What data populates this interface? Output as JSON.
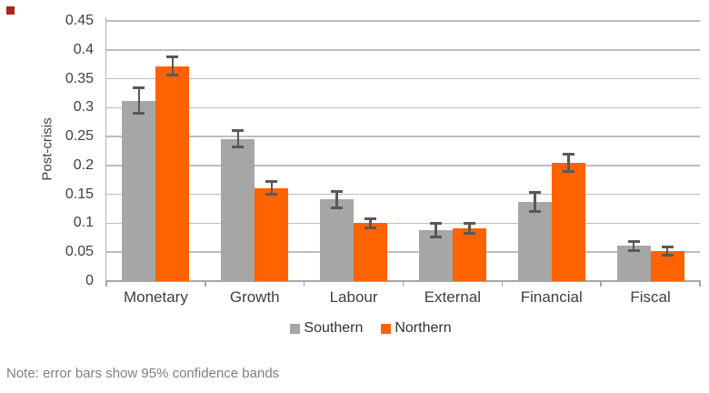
{
  "note": "Note: error bars show 95% confidence bands",
  "colors": {
    "background": "#FFFFFF",
    "southern": "#A6A6A6",
    "northern": "#FF6200",
    "error_bar": "#595959",
    "gridline": "#BDBDBD",
    "axis": "#A6A6A6",
    "axis_light": "#B3B3B3",
    "text": "#404040",
    "note_text": "#7F7F7F",
    "corner_mark": "#B22222"
  },
  "chart_data": {
    "type": "bar",
    "title": "",
    "xlabel": "",
    "ylabel": "Post-crisis",
    "ylim": [
      0,
      0.45
    ],
    "ytick_step": 0.05,
    "yticks": [
      "0",
      "0.05",
      "0.1",
      "0.15",
      "0.2",
      "0.25",
      "0.3",
      "0.35",
      "0.4",
      "0.45"
    ],
    "grid": true,
    "legend_position": "bottom-center",
    "error_bars_note": "95% confidence bands",
    "categories": [
      "Monetary",
      "Growth",
      "Labour",
      "External",
      "Financial",
      "Fiscal"
    ],
    "series": [
      {
        "name": "Southern",
        "color": "#A6A6A6",
        "values": [
          0.312,
          0.246,
          0.141,
          0.088,
          0.137,
          0.061
        ],
        "ci_low": [
          0.29,
          0.232,
          0.127,
          0.076,
          0.12,
          0.053
        ],
        "ci_high": [
          0.334,
          0.26,
          0.155,
          0.1,
          0.154,
          0.069
        ]
      },
      {
        "name": "Northern",
        "color": "#FF6200",
        "values": [
          0.372,
          0.161,
          0.1,
          0.091,
          0.205,
          0.052
        ],
        "ci_low": [
          0.356,
          0.15,
          0.092,
          0.082,
          0.19,
          0.045
        ],
        "ci_high": [
          0.388,
          0.172,
          0.108,
          0.1,
          0.22,
          0.059
        ]
      }
    ]
  }
}
